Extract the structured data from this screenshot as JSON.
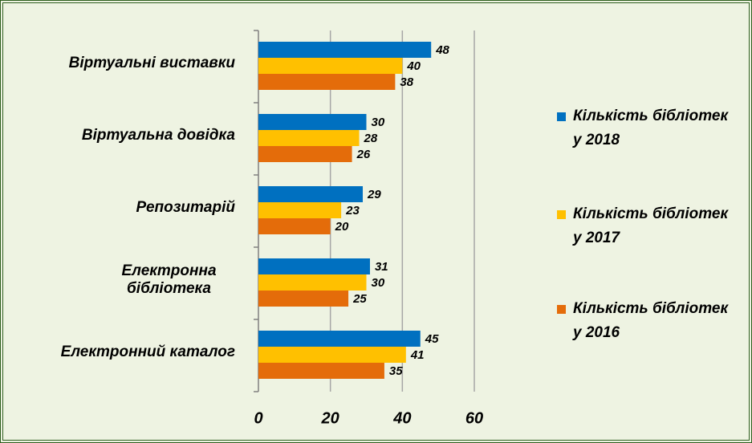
{
  "chart_data": {
    "type": "bar",
    "orientation": "horizontal",
    "categories": [
      "Віртуальні виставки",
      "Віртуальна довідка",
      "Репозитарій",
      "Електронна бібліотека",
      "Електронний каталог"
    ],
    "series": [
      {
        "name": "Кількість бібліотек у 2018",
        "color": "#0070c0",
        "values": [
          48,
          30,
          29,
          31,
          45
        ]
      },
      {
        "name": "Кількість бібліотек у 2017",
        "color": "#ffc000",
        "values": [
          40,
          28,
          23,
          30,
          41
        ]
      },
      {
        "name": "Кількість бібліотек у 2016",
        "color": "#e46c0a",
        "values": [
          38,
          26,
          20,
          25,
          35
        ]
      }
    ],
    "xlim": [
      0,
      60
    ],
    "xticks": [
      0,
      20,
      40,
      60
    ],
    "grid": true,
    "legend": "right"
  }
}
